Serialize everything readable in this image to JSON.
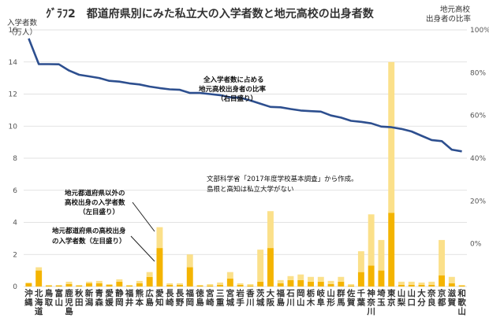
{
  "chart_data": {
    "type": "bar+line",
    "title": "ｸﾞﾗﾌ2　都道府県別にみた私立大の入学者数と地元高校の出身者数",
    "ylabel_left": [
      "入学者数",
      "（万人）"
    ],
    "ylabel_right": [
      "地元高校",
      "出身者の比率"
    ],
    "ylim_left": [
      0,
      16
    ],
    "yticks_left": [
      "0",
      "2",
      "4",
      "6",
      "8",
      "10",
      "12",
      "14",
      "16"
    ],
    "ylim_right": [
      -0.2,
      1.0
    ],
    "yticks_right": [
      "0%",
      "20%",
      "40%",
      "60%",
      "80%",
      "100%"
    ],
    "grid": true,
    "categories": [
      [
        "沖",
        "縄"
      ],
      [
        "北",
        "海",
        "道"
      ],
      [
        "鳥",
        "取"
      ],
      [
        "富",
        "山"
      ],
      [
        "鹿",
        "児",
        "島"
      ],
      [
        "秋",
        "田"
      ],
      [
        "新",
        "潟"
      ],
      [
        "青",
        "森"
      ],
      [
        "愛",
        "媛"
      ],
      [
        "静",
        "岡"
      ],
      [
        "福",
        "井"
      ],
      [
        "熊",
        "本"
      ],
      [
        "広",
        "島"
      ],
      [
        "愛",
        "知"
      ],
      [
        "長",
        "崎"
      ],
      [
        "長",
        "野"
      ],
      [
        "福",
        "岡"
      ],
      [
        "徳",
        "島"
      ],
      [
        "宮",
        "崎"
      ],
      [
        "三",
        "重"
      ],
      [
        "宮",
        "城"
      ],
      [
        "岩",
        "手"
      ],
      [
        "香",
        "川"
      ],
      [
        "茨",
        "城"
      ],
      [
        "大",
        "阪"
      ],
      [
        "福",
        "島"
      ],
      [
        "石",
        "川"
      ],
      [
        "岡",
        "山"
      ],
      [
        "栃",
        "木"
      ],
      [
        "岐",
        "阜"
      ],
      [
        "山",
        "形"
      ],
      [
        "群",
        "馬"
      ],
      [
        "佐",
        "賀"
      ],
      [
        "千",
        "葉"
      ],
      [
        "神",
        "奈",
        "川"
      ],
      [
        "埼",
        "玉"
      ],
      [
        "東",
        "京"
      ],
      [
        "山",
        "梨"
      ],
      [
        "山",
        "口"
      ],
      [
        "大",
        "分"
      ],
      [
        "奈",
        "良"
      ],
      [
        "京",
        "都"
      ],
      [
        "滋",
        "賀"
      ],
      [
        "和",
        "歌",
        "山"
      ]
    ],
    "series": [
      {
        "name": "地元都道府県の高校出身の入学者数（左目盛り）",
        "values": [
          0.2,
          1.0,
          0.05,
          0.05,
          0.15,
          0.05,
          0.2,
          0.2,
          0.1,
          0.3,
          0.05,
          0.2,
          0.6,
          2.4,
          0.1,
          0.1,
          1.2,
          0.05,
          0.05,
          0.1,
          0.5,
          0.1,
          0.05,
          0.3,
          2.4,
          0.2,
          0.4,
          0.4,
          0.3,
          0.3,
          0.15,
          0.3,
          0.05,
          0.9,
          1.3,
          1.0,
          4.6,
          0.1,
          0.1,
          0.1,
          0.1,
          0.7,
          0.2,
          0.05
        ]
      },
      {
        "name": "地元都道府県以外の高校出身の入学者数（左目盛り）",
        "values": [
          0.05,
          0.2,
          0.05,
          0.05,
          0.15,
          0.05,
          0.1,
          0.15,
          0.05,
          0.15,
          0.05,
          0.15,
          0.3,
          1.3,
          0.1,
          0.1,
          0.8,
          0.05,
          0.1,
          0.15,
          0.4,
          0.1,
          0.1,
          2.0,
          2.3,
          0.2,
          0.25,
          0.35,
          0.3,
          0.3,
          0.2,
          0.3,
          0.1,
          1.3,
          3.2,
          1.9,
          9.4,
          0.2,
          0.2,
          0.15,
          0.2,
          2.2,
          0.4,
          0.05
        ]
      },
      {
        "name": "全入学者数に占める地元高校出身者の比率（右目盛り）",
        "values": [
          0.96,
          0.84,
          0.84,
          0.839,
          0.81,
          0.79,
          0.783,
          0.775,
          0.762,
          0.758,
          0.75,
          0.745,
          0.735,
          0.728,
          0.722,
          0.72,
          0.705,
          0.705,
          0.7,
          0.695,
          0.685,
          0.683,
          0.67,
          0.655,
          0.64,
          0.638,
          0.63,
          0.623,
          0.62,
          0.618,
          0.6,
          0.59,
          0.575,
          0.57,
          0.563,
          0.548,
          0.545,
          0.537,
          0.525,
          0.505,
          0.485,
          0.48,
          0.44,
          0.432
        ]
      }
    ],
    "annotations": {
      "line": [
        "全入学者数に占める",
        "地元高校出身者の比率",
        "（右目盛り）"
      ],
      "outside": [
        "地元都道府県以外の",
        "高校出身の入学者数",
        "（左目盛り）"
      ],
      "local": [
        "地元都道府県の高校出身",
        "の入学者数（左目盛り）"
      ],
      "source": [
        "文部科学省「2017年度学校基本調査」から作成。",
        "島根と高知は私立大学がない"
      ]
    },
    "colors": {
      "local": "#f4b400",
      "outside": "#fbe08a",
      "line": "#2d4f8f",
      "grid": "#d9d9d9"
    }
  }
}
